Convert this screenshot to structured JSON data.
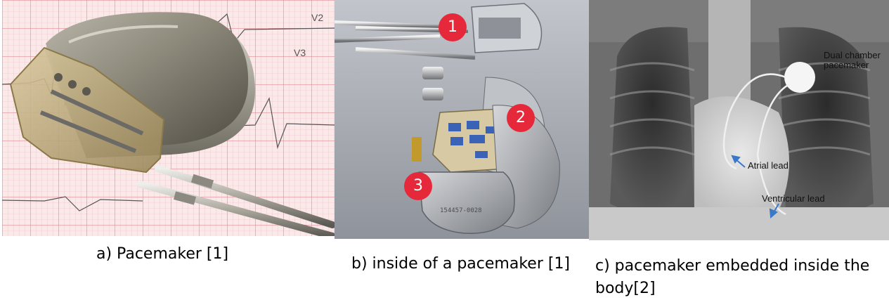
{
  "captions": {
    "a": "a) Pacemaker [1]",
    "b": "b) inside of a pacemaker [1]",
    "c": "c) pacemaker embedded inside the body[2]"
  },
  "panel_b": {
    "markers": [
      "1",
      "2",
      "3"
    ],
    "badge_color": "#e5293a",
    "engraving": "154457-0028"
  },
  "panel_c": {
    "labels": {
      "device": "Dual chamber pacemaker",
      "atrial": "Atrial lead",
      "ventricular": "Ventricular lead"
    },
    "arrow_color": "#3a78c8"
  },
  "panel_a": {
    "ecg_labels": [
      "V2",
      "V3"
    ]
  }
}
